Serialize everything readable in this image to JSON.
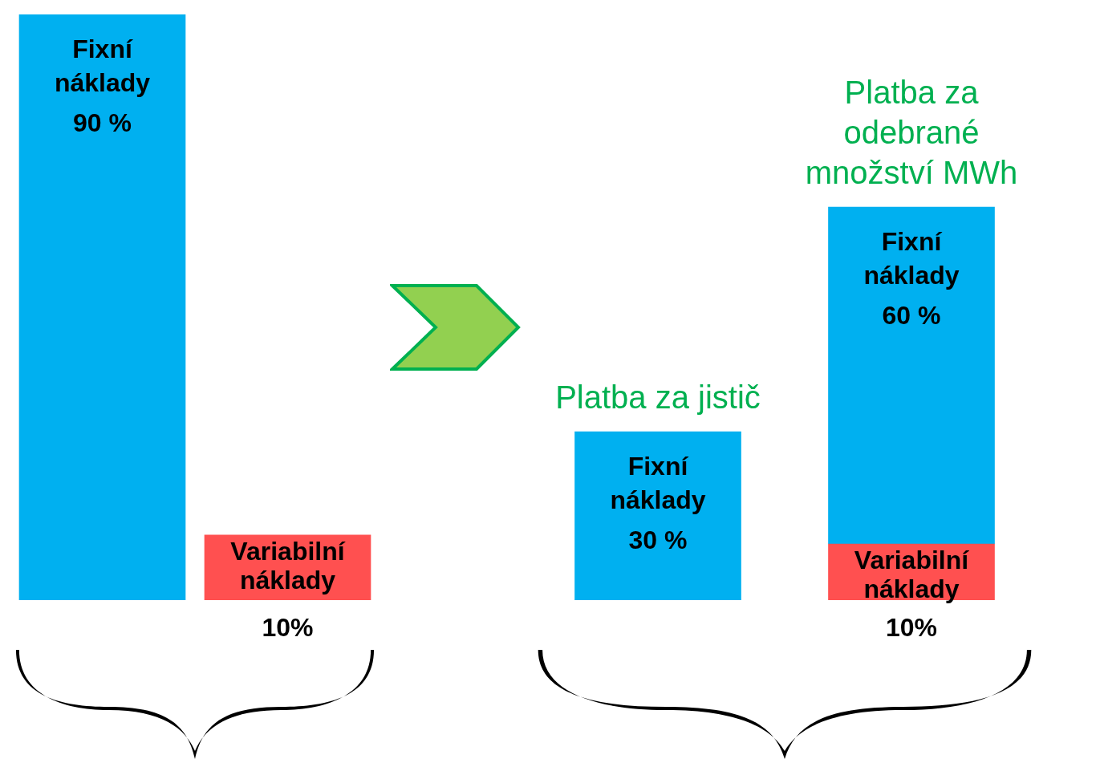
{
  "chart_data": [
    {
      "type": "bar",
      "stacked": true,
      "categories": [
        null,
        null
      ],
      "legend": false,
      "series": [
        {
          "name": "Variabilní náklady",
          "color": "#ff5050",
          "values": [
            null,
            10
          ],
          "value_labels": [
            null,
            "10%"
          ]
        },
        {
          "name": "Fixní náklady",
          "color": "#00b0f0",
          "values": [
            90,
            null
          ],
          "value_labels": [
            "90 %",
            null
          ]
        }
      ]
    },
    {
      "type": "bar",
      "stacked": true,
      "categories": [
        null,
        null
      ],
      "legend": false,
      "series": [
        {
          "name": "Variabilní náklady",
          "color": "#ff5050",
          "values": [
            null,
            10
          ],
          "value_labels": [
            null,
            "10%"
          ]
        },
        {
          "name": "Fixní náklady",
          "color": "#00b0f0",
          "values": [
            30,
            60
          ],
          "value_labels": [
            "30 %",
            "60 %"
          ]
        }
      ],
      "annotations": [
        "Platba za jistič",
        "Platba za odebrané množství MWh"
      ]
    }
  ]
}
